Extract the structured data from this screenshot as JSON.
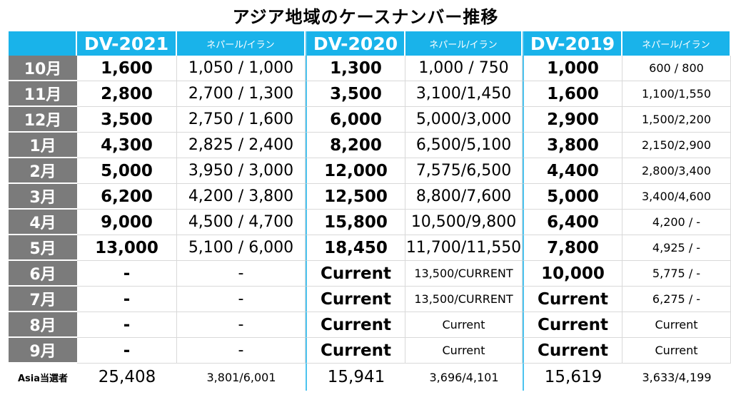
{
  "title": "アジア地域のケースナンバー推移",
  "chart_data": {
    "type": "table",
    "groups": [
      {
        "name": "DV-2021",
        "sub_label": "ネパール/イラン"
      },
      {
        "name": "DV-2020",
        "sub_label": "ネパール/イラン"
      },
      {
        "name": "DV-2019",
        "sub_label": "ネパール/イラン"
      }
    ],
    "rows": [
      {
        "month": "10月",
        "cells": [
          "1,600",
          "1,050 / 1,000",
          "1,300",
          "1,000 /   750",
          "1,000",
          "600  /  800"
        ]
      },
      {
        "month": "11月",
        "cells": [
          "2,800",
          "2,700 / 1,300",
          "3,500",
          "3,100/1,450",
          "1,600",
          "1,100/1,550"
        ]
      },
      {
        "month": "12月",
        "cells": [
          "3,500",
          "2,750 / 1,600",
          "6,000",
          "5,000/3,000",
          "2,900",
          "1,500/2,200"
        ]
      },
      {
        "month": "1月",
        "cells": [
          "4,300",
          "2,825 / 2,400",
          "8,200",
          "6,500/5,100",
          "3,800",
          "2,150/2,900"
        ]
      },
      {
        "month": "2月",
        "cells": [
          "5,000",
          "3,950 / 3,000",
          "12,000",
          "7,575/6,500",
          "4,400",
          "2,800/3,400"
        ]
      },
      {
        "month": "3月",
        "cells": [
          "6,200",
          "4,200 / 3,800",
          "12,500",
          "8,800/7,600",
          "5,000",
          "3,400/4,600"
        ]
      },
      {
        "month": "4月",
        "cells": [
          "9,000",
          "4,500 / 4,700",
          "15,800",
          "10,500/9,800",
          "6,400",
          "4,200 / -"
        ]
      },
      {
        "month": "5月",
        "cells": [
          "13,000",
          "5,100 / 6,000",
          "18,450",
          "11,700/11,550",
          "7,800",
          "4,925 / -"
        ]
      },
      {
        "month": "6月",
        "cells": [
          "-",
          "-",
          "Current",
          "13,500/CURRENT",
          "10,000",
          "5,775 / -"
        ]
      },
      {
        "month": "7月",
        "cells": [
          "-",
          "-",
          "Current",
          "13,500/CURRENT",
          "Current",
          "6,275 / -"
        ]
      },
      {
        "month": "8月",
        "cells": [
          "-",
          "-",
          "Current",
          "Current",
          "Current",
          "Current"
        ]
      },
      {
        "month": "9月",
        "cells": [
          "-",
          "-",
          "Current",
          "Current",
          "Current",
          "Current"
        ]
      }
    ],
    "footer": {
      "label": "Asia当選者",
      "cells": [
        "25,408",
        "3,801/6,001",
        "15,941",
        "3,696/4,101",
        "15,619",
        "3,633/4,199"
      ]
    },
    "colors": {
      "header": "#19b3ea",
      "month_col": "#7b7b7b",
      "divider": "#4cc3ef"
    }
  }
}
